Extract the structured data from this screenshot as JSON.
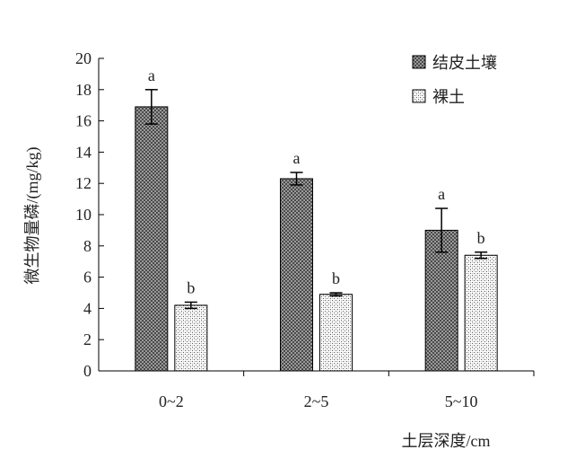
{
  "chart_data": {
    "type": "bar",
    "categories": [
      "0~2",
      "2~5",
      "5~10"
    ],
    "series": [
      {
        "name": "结皮土壤",
        "values": [
          16.9,
          12.3,
          9.0
        ],
        "errors": [
          1.1,
          0.4,
          1.4
        ],
        "letters": [
          "a",
          "a",
          "a"
        ],
        "pattern": "dense-dark"
      },
      {
        "name": "裸土",
        "values": [
          4.2,
          4.9,
          7.4
        ],
        "errors": [
          0.2,
          0.1,
          0.2
        ],
        "letters": [
          "b",
          "b",
          "b"
        ],
        "pattern": "light-stipple"
      }
    ],
    "ylabel": "微生物量磷/(mg/kg)",
    "xlabel": "土层深度/cm",
    "ylim": [
      0,
      20
    ],
    "yticks": [
      0,
      2,
      4,
      6,
      8,
      10,
      12,
      14,
      16,
      18,
      20
    ],
    "grid": false,
    "legend_position": "top-right"
  }
}
